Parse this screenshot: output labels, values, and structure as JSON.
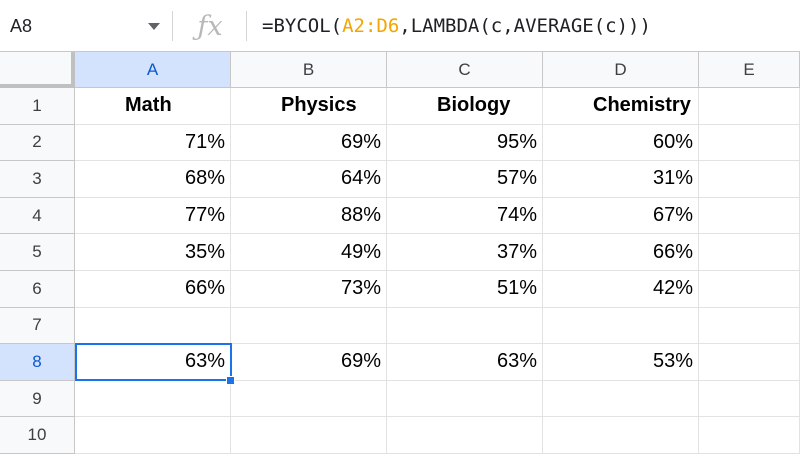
{
  "formula_bar": {
    "name_box": "A8",
    "formula_parts": [
      {
        "text": "=BYCOL(",
        "ref": false
      },
      {
        "text": "A2:D6",
        "ref": true
      },
      {
        "text": ",LAMBDA(c,AVERAGE(c)))",
        "ref": false
      }
    ]
  },
  "columns": [
    "A",
    "B",
    "C",
    "D",
    "E"
  ],
  "rows": [
    "1",
    "2",
    "3",
    "4",
    "5",
    "6",
    "7",
    "8",
    "9",
    "10"
  ],
  "headers": [
    "Math",
    "Physics",
    "Biology",
    "Chemistry"
  ],
  "data": [
    [
      "71%",
      "69%",
      "95%",
      "60%"
    ],
    [
      "68%",
      "64%",
      "57%",
      "31%"
    ],
    [
      "77%",
      "88%",
      "74%",
      "67%"
    ],
    [
      "35%",
      "49%",
      "37%",
      "66%"
    ],
    [
      "66%",
      "73%",
      "51%",
      "42%"
    ]
  ],
  "averages": [
    "63%",
    "69%",
    "63%",
    "53%"
  ],
  "selected_cell": "A8",
  "colors": {
    "selection": "#1a73e8",
    "reference": "#f2a600",
    "header_bg": "#f8f9fa",
    "active_header_bg": "#d3e3fd"
  },
  "icons": {
    "name_box_dropdown": "chevron-down-icon",
    "function": "fx-icon"
  }
}
